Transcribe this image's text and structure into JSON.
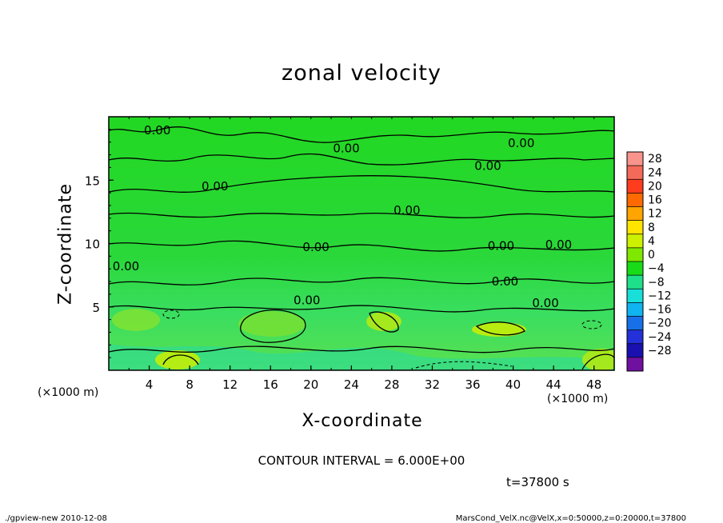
{
  "chart_data": {
    "type": "heatmap",
    "title": "zonal velocity",
    "xlabel": "X-coordinate",
    "ylabel": "Z-coordinate",
    "x_unit": "(×1000 m)",
    "z_unit": "(×1000 m)",
    "xlim": [
      0,
      50
    ],
    "ylim": [
      0,
      20
    ],
    "x_ticks": [
      "4",
      "8",
      "12",
      "16",
      "20",
      "24",
      "28",
      "32",
      "36",
      "40",
      "44",
      "48"
    ],
    "y_ticks": [
      "5",
      "10",
      "15"
    ],
    "colorbar": {
      "labels": [
        "28",
        "24",
        "20",
        "16",
        "12",
        "8",
        "4",
        "0",
        "−4",
        "−8",
        "−12",
        "−16",
        "−20",
        "−24",
        "−28"
      ],
      "colors": [
        "#f8948c",
        "#f46a5a",
        "#ff3c1e",
        "#ff6a00",
        "#ffa400",
        "#ffe400",
        "#ccf000",
        "#80e800",
        "#19dc19",
        "#1fe08a",
        "#18e0d8",
        "#10b4f0",
        "#1870e8",
        "#2430d8",
        "#1a10b0",
        "#7010a0"
      ]
    },
    "contour_labels": [
      "0.00"
    ],
    "contour_interval": "CONTOUR INTERVAL = 6.000E+00",
    "time": "t=37800 s",
    "grid": false
  },
  "footer": {
    "left": "./gpview-new   2010-12-08",
    "right": "MarsCond_VelX.nc@VelX,x=0:50000,z=0:20000,t=37800"
  }
}
